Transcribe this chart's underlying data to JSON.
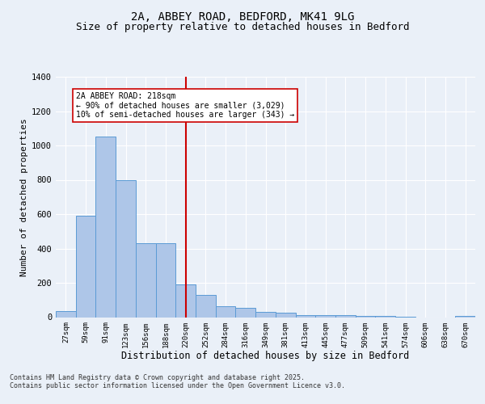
{
  "title": "2A, ABBEY ROAD, BEDFORD, MK41 9LG",
  "subtitle": "Size of property relative to detached houses in Bedford",
  "xlabel": "Distribution of detached houses by size in Bedford",
  "ylabel": "Number of detached properties",
  "categories": [
    "27sqm",
    "59sqm",
    "91sqm",
    "123sqm",
    "156sqm",
    "188sqm",
    "220sqm",
    "252sqm",
    "284sqm",
    "316sqm",
    "349sqm",
    "381sqm",
    "413sqm",
    "445sqm",
    "477sqm",
    "509sqm",
    "541sqm",
    "574sqm",
    "606sqm",
    "638sqm",
    "670sqm"
  ],
  "values": [
    35,
    590,
    1050,
    800,
    430,
    430,
    190,
    130,
    65,
    55,
    30,
    25,
    12,
    12,
    12,
    5,
    5,
    2,
    0,
    0,
    5
  ],
  "bar_color": "#aec6e8",
  "bar_edge_color": "#5b9bd5",
  "vline_x": 6,
  "vline_color": "#cc0000",
  "annotation_text": "2A ABBEY ROAD: 218sqm\n← 90% of detached houses are smaller (3,029)\n10% of semi-detached houses are larger (343) →",
  "annotation_box_color": "#ffffff",
  "annotation_box_edge_color": "#cc0000",
  "ylim": [
    0,
    1400
  ],
  "yticks": [
    0,
    200,
    400,
    600,
    800,
    1000,
    1200,
    1400
  ],
  "bg_color": "#eaf0f8",
  "plot_bg_color": "#eaf0f8",
  "footer": "Contains HM Land Registry data © Crown copyright and database right 2025.\nContains public sector information licensed under the Open Government Licence v3.0.",
  "title_fontsize": 10,
  "subtitle_fontsize": 9,
  "xlabel_fontsize": 8.5,
  "ylabel_fontsize": 8
}
